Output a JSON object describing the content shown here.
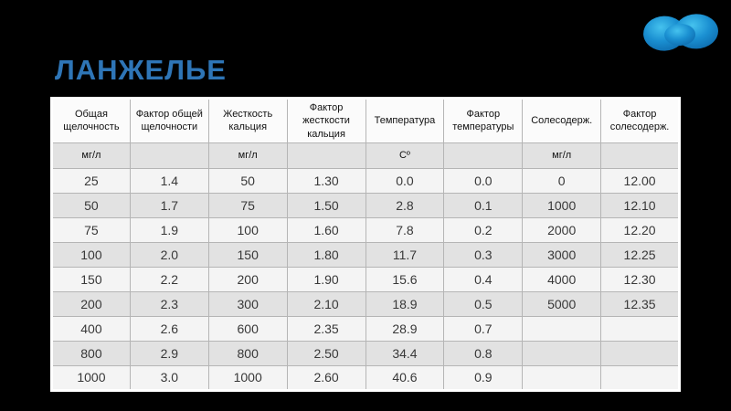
{
  "slide": {
    "title": "ЛАНЖЕЛЬЕ",
    "background_color": "#000000",
    "title_color": "#2E75B6",
    "logo_icon": "blue-blob-logo"
  },
  "colors": {
    "table_outer_border": "#ffffff",
    "table_grid_line": "#b5b5b5",
    "header_row_bg": "#fbfbfb",
    "units_row_bg": "#e2e2e2",
    "row_light_bg": "#f4f4f4",
    "row_dark_bg": "#e2e2e2",
    "logo_blue_light": "#45c2ee",
    "logo_blue_mid": "#1a8fd1",
    "logo_blue_dark": "#0c66a8"
  },
  "table": {
    "headers": [
      "Общая щелочность",
      "Фактор общей щелочности",
      "Жесткость кальция",
      "Фактор жесткости кальция",
      "Температура",
      "Фактор температуры",
      "Солесодерж.",
      "Фактор солесодерж."
    ],
    "units_row": [
      "мг/л",
      "",
      "мг/л",
      "",
      "Cº",
      "",
      "мг/л",
      ""
    ],
    "rows": [
      [
        "25",
        "1.4",
        "50",
        "1.30",
        "0.0",
        "0.0",
        "0",
        "12.00"
      ],
      [
        "50",
        "1.7",
        "75",
        "1.50",
        "2.8",
        "0.1",
        "1000",
        "12.10"
      ],
      [
        "75",
        "1.9",
        "100",
        "1.60",
        "7.8",
        "0.2",
        "2000",
        "12.20"
      ],
      [
        "100",
        "2.0",
        "150",
        "1.80",
        "11.7",
        "0.3",
        "3000",
        "12.25"
      ],
      [
        "150",
        "2.2",
        "200",
        "1.90",
        "15.6",
        "0.4",
        "4000",
        "12.30"
      ],
      [
        "200",
        "2.3",
        "300",
        "2.10",
        "18.9",
        "0.5",
        "5000",
        "12.35"
      ],
      [
        "400",
        "2.6",
        "600",
        "2.35",
        "28.9",
        "0.7",
        "",
        ""
      ],
      [
        "800",
        "2.9",
        "800",
        "2.50",
        "34.4",
        "0.8",
        "",
        ""
      ],
      [
        "1000",
        "3.0",
        "1000",
        "2.60",
        "40.6",
        "0.9",
        "",
        ""
      ]
    ]
  }
}
